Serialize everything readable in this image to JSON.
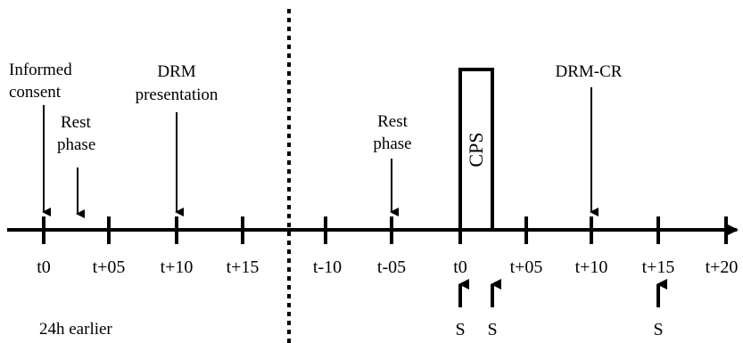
{
  "day1": {
    "ticks": [
      "t0",
      "t+05",
      "t+10",
      "t+15"
    ],
    "events": {
      "informed_consent": [
        "Informed",
        "consent"
      ],
      "rest_phase": [
        "Rest",
        "phase"
      ],
      "drm_presentation": [
        "DRM",
        "presentation"
      ]
    },
    "note": "24h earlier"
  },
  "day2": {
    "ticks": [
      "t-10",
      "t-05",
      "t0",
      "t+05",
      "t+10",
      "t+15",
      "t+20"
    ],
    "events": {
      "rest_phase": [
        "Rest",
        "phase"
      ],
      "cps": "CPS",
      "drm_cr": "DRM-CR"
    },
    "samples": [
      "S",
      "S",
      "S"
    ]
  },
  "colors": {
    "ink": "#000000",
    "background": "#ffffff"
  }
}
